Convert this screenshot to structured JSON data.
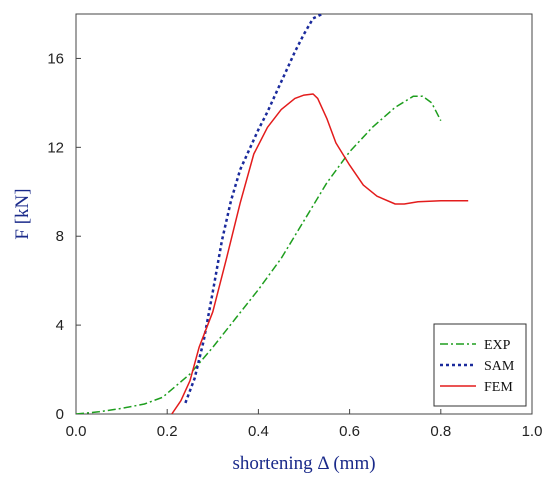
{
  "chart_data": {
    "type": "line",
    "xlabel": "shortening  Δ (mm)",
    "ylabel": "F [kN]",
    "xlim": [
      0,
      1.0
    ],
    "ylim": [
      0,
      18
    ],
    "x_ticks": [
      "0.0",
      "0.2",
      "0.4",
      "0.6",
      "0.8",
      "1.0"
    ],
    "y_ticks": [
      "0",
      "4",
      "8",
      "12",
      "16"
    ],
    "grid": false,
    "legend_position": "bottom-right",
    "series": [
      {
        "name": "EXP",
        "color": "#1e9e1e",
        "style": "dash-dot",
        "x": [
          0.0,
          0.05,
          0.1,
          0.15,
          0.19,
          0.25,
          0.3,
          0.35,
          0.4,
          0.45,
          0.5,
          0.55,
          0.6,
          0.65,
          0.7,
          0.74,
          0.76,
          0.78,
          0.8
        ],
        "y": [
          0.0,
          0.1,
          0.25,
          0.45,
          0.75,
          1.8,
          3.0,
          4.3,
          5.6,
          7.0,
          8.7,
          10.4,
          11.8,
          12.9,
          13.8,
          14.3,
          14.3,
          14.0,
          13.2
        ]
      },
      {
        "name": "SAM",
        "color": "#1a2a9c",
        "style": "dotted",
        "x": [
          0.24,
          0.26,
          0.28,
          0.3,
          0.32,
          0.34,
          0.36,
          0.38,
          0.4,
          0.42,
          0.44,
          0.46,
          0.48,
          0.5,
          0.52,
          0.54
        ],
        "y": [
          0.5,
          1.6,
          3.3,
          5.5,
          7.8,
          9.6,
          11.0,
          11.9,
          12.8,
          13.6,
          14.5,
          15.4,
          16.3,
          17.1,
          17.8,
          18.0
        ]
      },
      {
        "name": "FEM",
        "color": "#e31c1c",
        "style": "solid",
        "x": [
          0.21,
          0.23,
          0.25,
          0.27,
          0.3,
          0.33,
          0.36,
          0.39,
          0.42,
          0.45,
          0.48,
          0.5,
          0.52,
          0.53,
          0.55,
          0.57,
          0.6,
          0.63,
          0.66,
          0.7,
          0.72,
          0.75,
          0.8,
          0.86
        ],
        "y": [
          0.0,
          0.6,
          1.5,
          3.0,
          4.6,
          7.0,
          9.5,
          11.7,
          12.9,
          13.7,
          14.2,
          14.35,
          14.4,
          14.2,
          13.3,
          12.2,
          11.2,
          10.3,
          9.8,
          9.45,
          9.45,
          9.55,
          9.6,
          9.6
        ]
      }
    ]
  }
}
